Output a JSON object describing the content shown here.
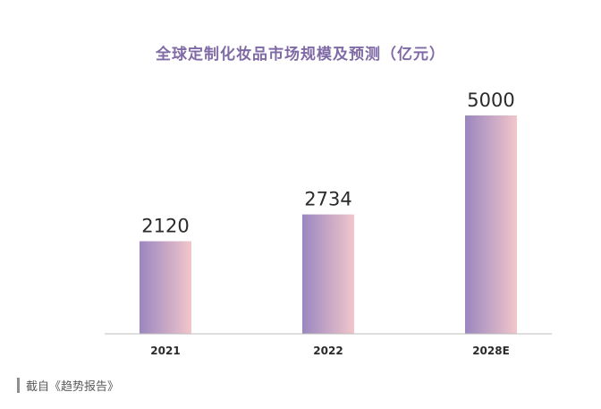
{
  "chart_data": {
    "type": "bar",
    "title": "全球定制化妆品市场规模及预测（亿元）",
    "categories": [
      "2021",
      "2022",
      "2028E"
    ],
    "values": [
      2120,
      2734,
      5000
    ],
    "ylim": [
      0,
      5000
    ],
    "grid": false,
    "legend": "none",
    "colors": {
      "bar_gradient_start": "#9a86bf",
      "bar_gradient_end": "#f2c6cb",
      "axis": "#bdbdbd",
      "title": "#7f6aa6"
    }
  },
  "source": "截自《趋势报告》"
}
